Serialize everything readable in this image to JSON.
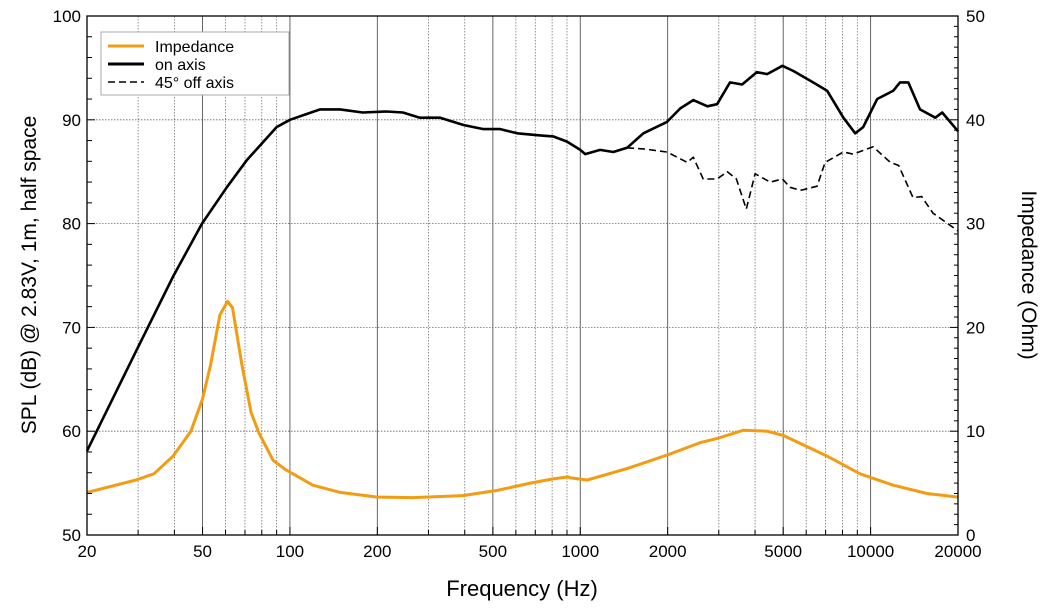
{
  "chart_data": {
    "type": "line",
    "xlabel": "Frequency (Hz)",
    "ylabel": "SPL (dB) @ 2.83V, 1m, half space",
    "y2label": "Impedance (Ohm)",
    "xscale": "log",
    "xlim": [
      20,
      20000
    ],
    "ylim": [
      50,
      100
    ],
    "y2lim": [
      0,
      50
    ],
    "xticks": [
      20,
      50,
      100,
      200,
      500,
      1000,
      2000,
      5000,
      10000,
      20000
    ],
    "yticks": [
      50,
      60,
      70,
      80,
      90,
      100
    ],
    "y2ticks": [
      0,
      10,
      20,
      30,
      40,
      50
    ],
    "grid": true,
    "legend_position": "top-left",
    "series": [
      {
        "name": "Impedance",
        "axis": "right",
        "color": "#f39c12",
        "style": "solid",
        "points": [
          [
            20,
            4.1
          ],
          [
            29.5,
            5.3
          ],
          [
            34,
            5.9
          ],
          [
            39.6,
            7.6
          ],
          [
            45.6,
            10
          ],
          [
            50,
            13.1
          ],
          [
            53.3,
            16.4
          ],
          [
            57.4,
            21.2
          ],
          [
            61,
            22.5
          ],
          [
            63.4,
            21.9
          ],
          [
            68.3,
            16.4
          ],
          [
            73.5,
            11.8
          ],
          [
            78.3,
            9.8
          ],
          [
            87.5,
            7.2
          ],
          [
            96.5,
            6.3
          ],
          [
            120,
            4.8
          ],
          [
            149,
            4.1
          ],
          [
            200,
            3.65
          ],
          [
            265,
            3.6
          ],
          [
            394,
            3.8
          ],
          [
            518,
            4.3
          ],
          [
            673,
            5.0
          ],
          [
            806,
            5.4
          ],
          [
            909,
            5.6
          ],
          [
            924,
            5.5
          ],
          [
            1057,
            5.3
          ],
          [
            1450,
            6.4
          ],
          [
            1990,
            7.7
          ],
          [
            2590,
            8.9
          ],
          [
            2960,
            9.3
          ],
          [
            3650,
            10.1
          ],
          [
            4400,
            10.0
          ],
          [
            5000,
            9.6
          ],
          [
            7080,
            7.6
          ],
          [
            9190,
            5.9
          ],
          [
            11970,
            4.8
          ],
          [
            15640,
            4.0
          ],
          [
            20000,
            3.65
          ]
        ]
      },
      {
        "name": "on axis",
        "axis": "left",
        "color": "#000000",
        "style": "solid",
        "points": [
          [
            20,
            58.1
          ],
          [
            29.5,
            67.7
          ],
          [
            39.6,
            74.9
          ],
          [
            49.8,
            80
          ],
          [
            60.6,
            83.5
          ],
          [
            71,
            86.1
          ],
          [
            90,
            89.3
          ],
          [
            100,
            90
          ],
          [
            127,
            91.0
          ],
          [
            149,
            91.0
          ],
          [
            178,
            90.7
          ],
          [
            215,
            90.8
          ],
          [
            245,
            90.7
          ],
          [
            280,
            90.2
          ],
          [
            329,
            90.2
          ],
          [
            396,
            89.5
          ],
          [
            464,
            89.1
          ],
          [
            530,
            89.1
          ],
          [
            606,
            88.7
          ],
          [
            728,
            88.5
          ],
          [
            806,
            88.4
          ],
          [
            900,
            87.9
          ],
          [
            1000,
            87.1
          ],
          [
            1040,
            86.7
          ],
          [
            1170,
            87.1
          ],
          [
            1300,
            86.9
          ],
          [
            1450,
            87.3
          ],
          [
            1650,
            88.7
          ],
          [
            1990,
            89.8
          ],
          [
            2210,
            91.1
          ],
          [
            2450,
            91.9
          ],
          [
            2740,
            91.3
          ],
          [
            2960,
            91.5
          ],
          [
            3280,
            93.6
          ],
          [
            3610,
            93.4
          ],
          [
            4060,
            94.6
          ],
          [
            4400,
            94.4
          ],
          [
            4970,
            95.2
          ],
          [
            5420,
            94.7
          ],
          [
            6340,
            93.6
          ],
          [
            7080,
            92.8
          ],
          [
            8060,
            90.2
          ],
          [
            8850,
            88.7
          ],
          [
            9430,
            89.3
          ],
          [
            10540,
            92.0
          ],
          [
            11970,
            92.8
          ],
          [
            12630,
            93.6
          ],
          [
            13480,
            93.6
          ],
          [
            14800,
            91.0
          ],
          [
            16700,
            90.2
          ],
          [
            17640,
            90.7
          ],
          [
            20000,
            88.9
          ]
        ]
      },
      {
        "name": "45° off axis",
        "axis": "left",
        "color": "#000000",
        "style": "dashed",
        "points": [
          [
            1450,
            87.3
          ],
          [
            1650,
            87.2
          ],
          [
            1990,
            86.9
          ],
          [
            2335,
            85.9
          ],
          [
            2450,
            86.4
          ],
          [
            2650,
            84.3
          ],
          [
            2960,
            84.3
          ],
          [
            3210,
            85.0
          ],
          [
            3450,
            84.3
          ],
          [
            3730,
            81.4
          ],
          [
            4000,
            84.8
          ],
          [
            4510,
            84.0
          ],
          [
            4970,
            84.3
          ],
          [
            5280,
            83.5
          ],
          [
            5730,
            83.2
          ],
          [
            6540,
            83.6
          ],
          [
            6970,
            85.9
          ],
          [
            8060,
            86.9
          ],
          [
            8710,
            86.7
          ],
          [
            10200,
            87.4
          ],
          [
            11700,
            85.9
          ],
          [
            12500,
            85.6
          ],
          [
            14000,
            82.5
          ],
          [
            15000,
            82.6
          ],
          [
            16400,
            81.0
          ],
          [
            20000,
            79.3
          ]
        ]
      }
    ]
  }
}
